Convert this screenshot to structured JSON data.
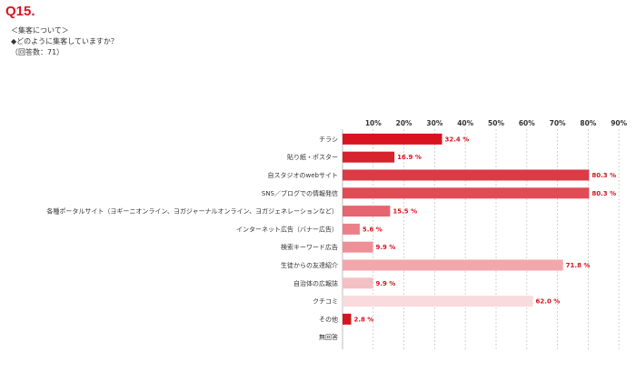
{
  "header": {
    "question_id": "Q15.",
    "topic": "＜集客について＞",
    "question": "◆どのように集客していますか？",
    "respondents": "（回答数：71）"
  },
  "chart_data": {
    "type": "bar",
    "orientation": "horizontal",
    "x_ticks": [
      "10%",
      "20%",
      "30%",
      "40%",
      "50%",
      "60%",
      "70%",
      "80%",
      "90%"
    ],
    "xlim": [
      0,
      90
    ],
    "grid": "vertical dashed",
    "categories": [
      "チラシ",
      "貼り紙・ポスター",
      "自スタジオのwebサイト",
      "SNS／ブログでの情報発信",
      "各種ポータルサイト（ヨギーニオンライン、ヨガジャーナルオンライン、ヨガジェネレーションなど）",
      "インターネット広告（バナー広告）",
      "検索キーワード広告",
      "生徒からの友達紹介",
      "自治体の広報誌",
      "クチコミ",
      "その他",
      "無回答"
    ],
    "values": [
      32.4,
      16.9,
      80.3,
      80.3,
      15.5,
      5.6,
      9.9,
      71.8,
      9.9,
      62.0,
      2.8,
      null
    ],
    "value_labels": [
      "32.4 %",
      "16.9 %",
      "80.3 %",
      "80.3 %",
      "15.5 %",
      "5.6 %",
      "9.9 %",
      "71.8 %",
      "9.9 %",
      "62.0 %",
      "2.8 %",
      ""
    ],
    "colors": [
      "#d7141f",
      "#d7232e",
      "#dc3a45",
      "#e04b56",
      "#e56570",
      "#ea808a",
      "#ee9098",
      "#f2a7ad",
      "#f5c0c4",
      "#f9dadd",
      "#d7141f",
      "#ffffff"
    ],
    "label_color": "#d7141f"
  }
}
